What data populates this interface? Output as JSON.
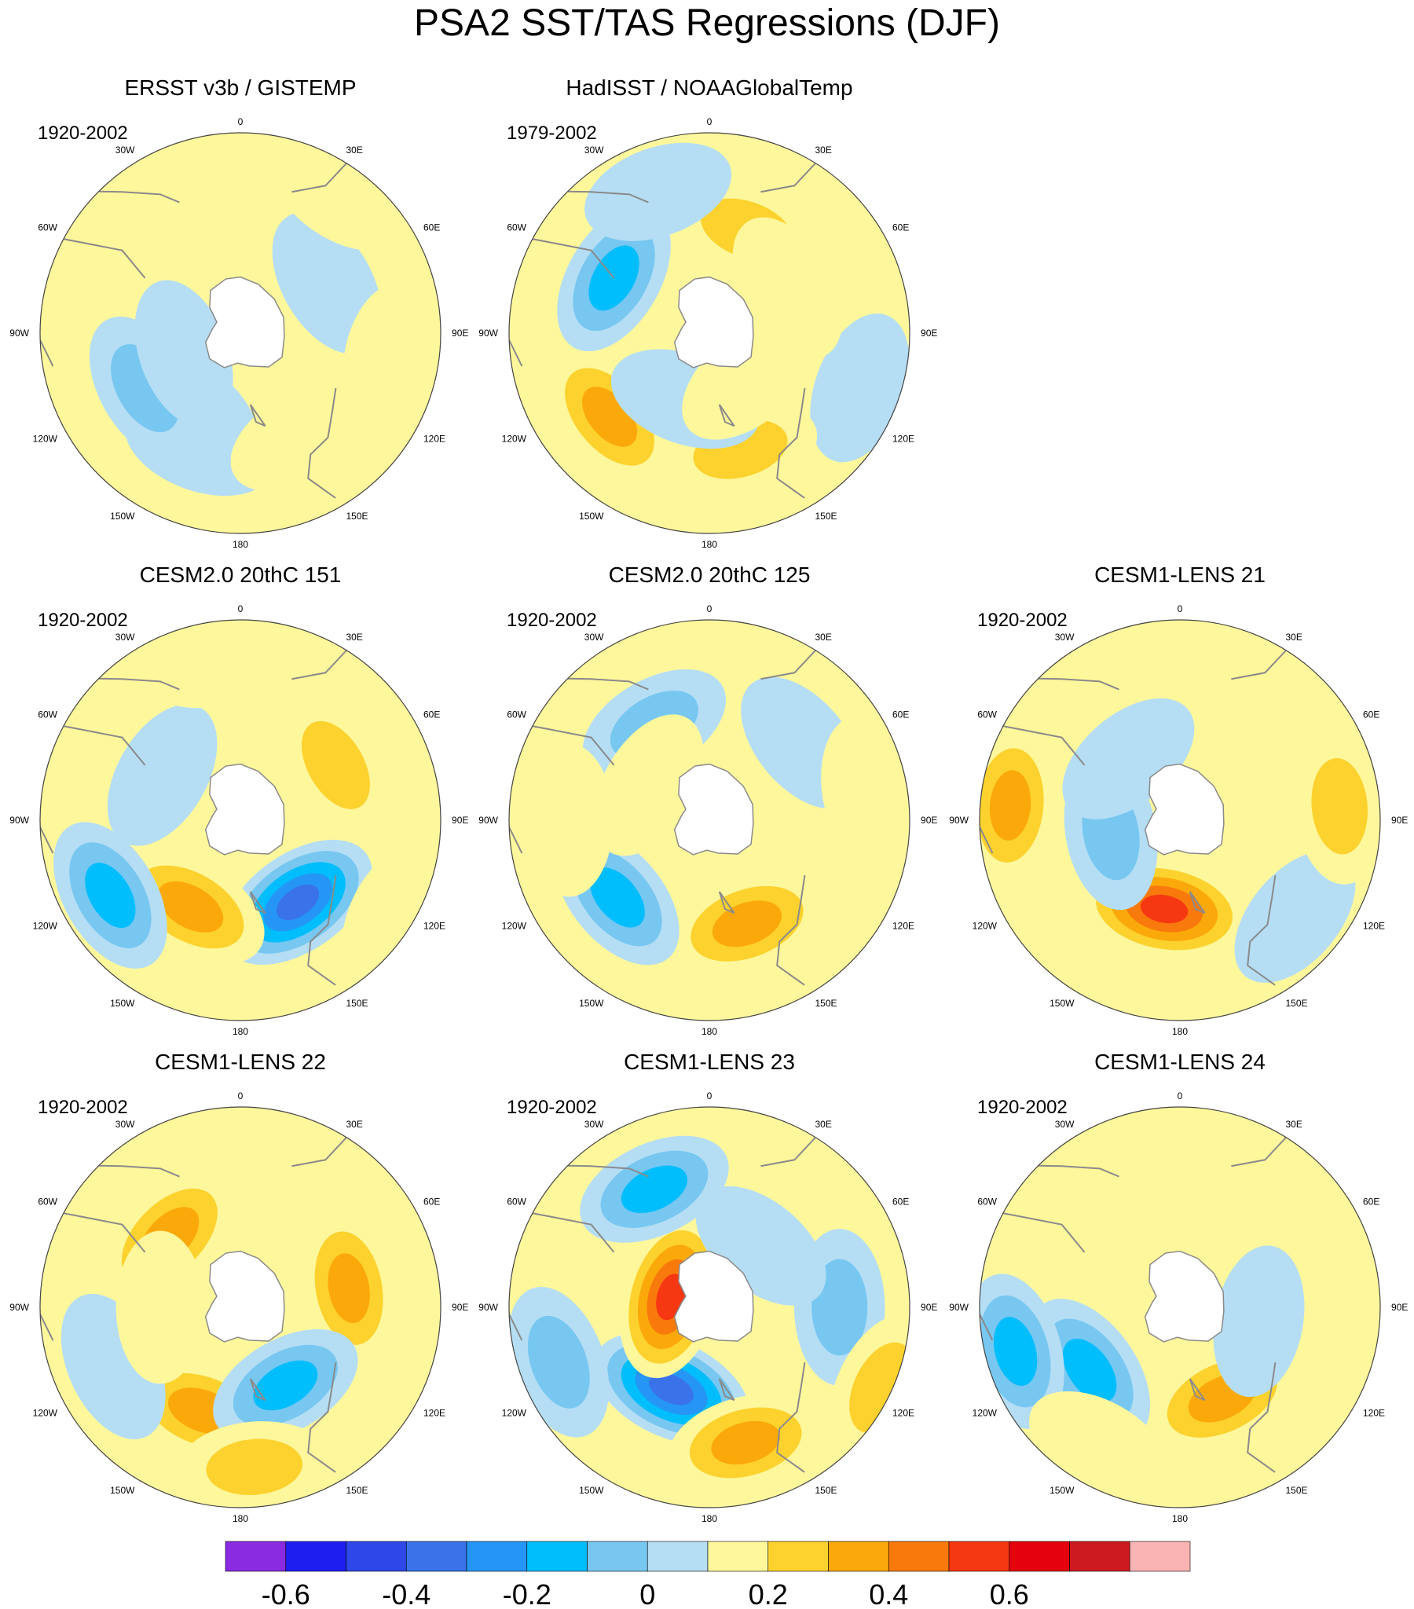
{
  "figure": {
    "title": "PSA2 SST/TAS Regressions (DJF)"
  },
  "colors": {
    "land": "#ffffff",
    "coast": "#8a8a8a",
    "levels": [
      "#8a2be2",
      "#1e1ef0",
      "#2e47e8",
      "#3a72ea",
      "#2596f5",
      "#00bdfb",
      "#77c7f1",
      "#b5def4",
      "#fef79c",
      "#fdd22e",
      "#fba90a",
      "#f97a0c",
      "#f63812",
      "#e4030c",
      "#cc1a1f",
      "#fbb4b4"
    ]
  },
  "chart_data": {
    "type": "heatmap",
    "projection": "south-polar-stereographic",
    "longitude_labels": [
      "0",
      "30E",
      "60E",
      "90E",
      "120E",
      "150E",
      "180",
      "150W",
      "120W",
      "90W",
      "60W",
      "30W"
    ],
    "colorbar": {
      "ticks": [
        "-0.6",
        "-0.4",
        "-0.2",
        "0",
        "0.2",
        "0.4",
        "0.6"
      ],
      "levels": [
        -0.7,
        -0.6,
        -0.5,
        -0.4,
        -0.3,
        -0.2,
        -0.1,
        0,
        0.1,
        0.2,
        0.3,
        0.4,
        0.5,
        0.6,
        0.7
      ]
    },
    "panels": [
      {
        "title": "ERSST v3b / GISTEMP",
        "period": "1920-2002",
        "blobs": [
          [
            200,
            0.6,
            -0.15
          ],
          [
            215,
            0.45,
            -0.15
          ],
          [
            240,
            0.55,
            -0.2
          ],
          [
            150,
            0.6,
            0.1
          ],
          [
            60,
            0.5,
            -0.15
          ],
          [
            100,
            0.75,
            0.1
          ],
          [
            35,
            0.85,
            0.1
          ],
          [
            290,
            0.9,
            0.1
          ],
          [
            250,
            0.3,
            -0.1
          ]
        ]
      },
      {
        "title": "HadISST / NOAAGlobalTemp",
        "period": "1979-2002",
        "blobs": [
          [
            20,
            0.55,
            0.2
          ],
          [
            110,
            0.8,
            -0.15
          ],
          [
            60,
            0.45,
            0.15
          ],
          [
            230,
            0.65,
            0.25
          ],
          [
            165,
            0.6,
            0.2
          ],
          [
            300,
            0.55,
            -0.3
          ],
          [
            200,
            0.35,
            -0.15
          ],
          [
            140,
            0.3,
            0.15
          ],
          [
            340,
            0.75,
            -0.1
          ]
        ]
      },
      {
        "title": "CESM2.0 20thC 151",
        "period": "1920-2002",
        "blobs": [
          [
            145,
            0.5,
            -0.5
          ],
          [
            210,
            0.5,
            0.35
          ],
          [
            240,
            0.75,
            -0.3
          ],
          [
            60,
            0.55,
            0.2
          ],
          [
            300,
            0.45,
            -0.15
          ],
          [
            350,
            0.8,
            0.1
          ],
          [
            120,
            0.9,
            0.1
          ]
        ]
      },
      {
        "title": "CESM2.0 20thC 125",
        "period": "1920-2002",
        "blobs": [
          [
            160,
            0.55,
            0.35
          ],
          [
            230,
            0.6,
            -0.25
          ],
          [
            330,
            0.55,
            -0.2
          ],
          [
            50,
            0.6,
            -0.15
          ],
          [
            80,
            0.8,
            0.15
          ],
          [
            270,
            0.7,
            0.1
          ],
          [
            300,
            0.35,
            0.15
          ]
        ]
      },
      {
        "title": "CESM1-LENS 21",
        "period": "1920-2002",
        "blobs": [
          [
            190,
            0.45,
            0.5
          ],
          [
            130,
            0.75,
            -0.15
          ],
          [
            260,
            0.35,
            -0.2
          ],
          [
            40,
            0.5,
            0.15
          ],
          [
            85,
            0.8,
            0.2
          ],
          [
            275,
            0.85,
            0.25
          ],
          [
            320,
            0.4,
            -0.15
          ]
        ]
      },
      {
        "title": "CESM1-LENS 22",
        "period": "1920-2002",
        "blobs": [
          [
            315,
            0.5,
            0.35
          ],
          [
            80,
            0.55,
            0.25
          ],
          [
            200,
            0.55,
            0.35
          ],
          [
            150,
            0.45,
            -0.25
          ],
          [
            245,
            0.7,
            -0.15
          ],
          [
            175,
            0.8,
            0.2
          ],
          [
            270,
            0.4,
            0.1
          ]
        ]
      },
      {
        "title": "CESM1-LENS 23",
        "period": "1920-2002",
        "blobs": [
          [
            205,
            0.45,
            -0.45
          ],
          [
            285,
            0.2,
            0.45
          ],
          [
            335,
            0.65,
            -0.25
          ],
          [
            165,
            0.7,
            0.25
          ],
          [
            90,
            0.65,
            -0.2
          ],
          [
            115,
            0.95,
            0.2
          ],
          [
            250,
            0.8,
            -0.2
          ],
          [
            40,
            0.4,
            -0.1
          ]
        ]
      },
      {
        "title": "CESM1-LENS 24",
        "period": "1920-2002",
        "blobs": [
          [
            155,
            0.5,
            0.35
          ],
          [
            235,
            0.55,
            -0.35
          ],
          [
            255,
            0.85,
            -0.25
          ],
          [
            60,
            0.55,
            0.15
          ],
          [
            340,
            0.5,
            0.1
          ],
          [
            210,
            0.8,
            0.15
          ],
          [
            100,
            0.4,
            -0.1
          ]
        ]
      }
    ]
  }
}
